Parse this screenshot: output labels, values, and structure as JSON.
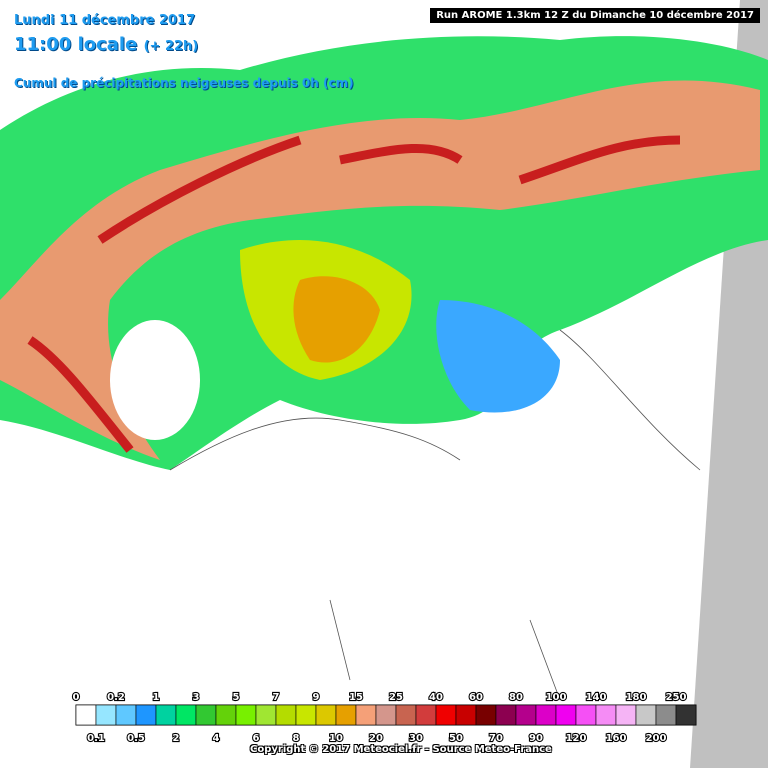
{
  "header": {
    "date": "Lundi 11 décembre 2017",
    "time": "11:00 locale",
    "lead": "(+ 22h)",
    "subtitle": "Cumul de précipitations neigeuses depuis 0h (cm)",
    "run": "Run AROME 1.3km 12 Z du Dimanche 10 décembre 2017"
  },
  "legend": {
    "steps": [
      {
        "label": "0",
        "color": "#ffffff"
      },
      {
        "label": "0.1",
        "color": "#96e6ff"
      },
      {
        "label": "0.2",
        "color": "#5fc8ff"
      },
      {
        "label": "0.5",
        "color": "#1e96ff"
      },
      {
        "label": "1",
        "color": "#00d2a0"
      },
      {
        "label": "2",
        "color": "#00e664"
      },
      {
        "label": "3",
        "color": "#32c832"
      },
      {
        "label": "4",
        "color": "#64d20a"
      },
      {
        "label": "5",
        "color": "#78f000"
      },
      {
        "label": "6",
        "color": "#a0e632"
      },
      {
        "label": "7",
        "color": "#b4dc00"
      },
      {
        "label": "8",
        "color": "#c8e600"
      },
      {
        "label": "9",
        "color": "#dcc800"
      },
      {
        "label": "10",
        "color": "#e6a000"
      },
      {
        "label": "15",
        "color": "#f5a078"
      },
      {
        "label": "20",
        "color": "#d4968c"
      },
      {
        "label": "25",
        "color": "#c86450"
      },
      {
        "label": "30",
        "color": "#d23c3c"
      },
      {
        "label": "40",
        "color": "#f00000"
      },
      {
        "label": "50",
        "color": "#c80000"
      },
      {
        "label": "60",
        "color": "#780000"
      },
      {
        "label": "70",
        "color": "#8c0050"
      },
      {
        "label": "80",
        "color": "#b4008c"
      },
      {
        "label": "90",
        "color": "#dc00c8"
      },
      {
        "label": "100",
        "color": "#f000f0"
      },
      {
        "label": "120",
        "color": "#f550f5"
      },
      {
        "label": "140",
        "color": "#f58cf5"
      },
      {
        "label": "160",
        "color": "#f5b4f5"
      },
      {
        "label": "180",
        "color": "#c8c8c8"
      },
      {
        "label": "200",
        "color": "#8c8c8c"
      },
      {
        "label": "250",
        "color": "#323232"
      }
    ]
  },
  "footer": {
    "copyright": "Copyright © 2017 Meteociel.fr - Source Meteo-France"
  }
}
